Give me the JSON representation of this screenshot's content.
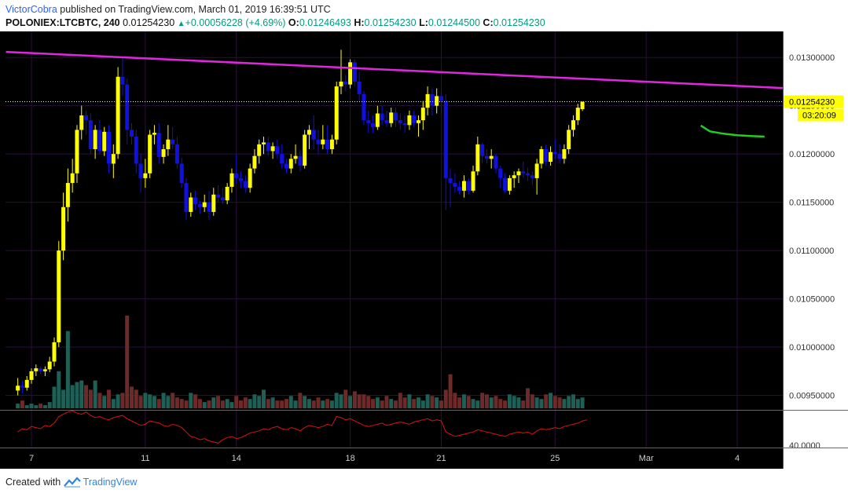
{
  "header": {
    "author": "VictorCobra",
    "published_text": "published on TradingView.com, March 01, 2019 16:39:51 UTC",
    "symbol": "POLONIEX:LTCBTC, 240",
    "last": "0.01254230",
    "change": "+0.00056228 (+4.69%)",
    "o_label": "O:",
    "o_value": "0.01246493",
    "h_label": "H:",
    "h_value": "0.01254230",
    "l_label": "L:",
    "l_value": "0.01244500",
    "c_label": "C:",
    "c_value": "0.01254230"
  },
  "footer": {
    "created_with": "Created with",
    "brand": "TradingView"
  },
  "colors": {
    "background": "#000000",
    "up_candle": "#ffff00",
    "down_candle": "#1010e0",
    "trendline": "#e026e0",
    "forecast": "#22cc22",
    "rsi": "#dd1111",
    "vol_up": "#1e5f56",
    "vol_down": "#6e2a28",
    "grid": "#2a0f3a",
    "price_line": "#ffff80"
  },
  "chart_data": {
    "type": "candlestick",
    "symbol": "POLONIEX:LTCBTC",
    "interval": "240",
    "price_axis_labels": [
      "0.01300000",
      "0.01250000",
      "0.01200000",
      "0.01150000",
      "0.01100000",
      "0.01050000",
      "0.01000000",
      "0.00950000"
    ],
    "price_axis_values": [
      0.013,
      0.0125,
      0.012,
      0.0115,
      0.011,
      0.0105,
      0.01,
      0.0095
    ],
    "ylim": [
      0.00935,
      0.01327
    ],
    "x_tick_labels": [
      "7",
      "11",
      "14",
      "18",
      "21",
      "25",
      "Mar",
      "4"
    ],
    "x_tick_index": [
      3,
      28,
      48,
      73,
      93,
      118,
      138,
      158
    ],
    "x_range_index": [
      -2.7,
      168
    ],
    "current_price_label": "0.01254230",
    "countdown_label": "03:20:09",
    "rsi_label": "40.0000",
    "rsi_range": [
      38,
      72
    ],
    "candles": [
      [
        0.00955,
        0.00968,
        0.0095,
        0.0096
      ],
      [
        0.0096,
        0.00965,
        0.00952,
        0.00958
      ],
      [
        0.00958,
        0.0097,
        0.00955,
        0.00966
      ],
      [
        0.00966,
        0.00978,
        0.00962,
        0.00975
      ],
      [
        0.00975,
        0.00982,
        0.0097,
        0.00978
      ],
      [
        0.00978,
        0.0098,
        0.00972,
        0.00975
      ],
      [
        0.00975,
        0.0098,
        0.0097,
        0.00977
      ],
      [
        0.00977,
        0.0099,
        0.00974,
        0.00985
      ],
      [
        0.00985,
        0.0101,
        0.0098,
        0.01005
      ],
      [
        0.01005,
        0.0111,
        0.01,
        0.011
      ],
      [
        0.011,
        0.0116,
        0.0109,
        0.01145
      ],
      [
        0.01145,
        0.01185,
        0.0113,
        0.0117
      ],
      [
        0.0117,
        0.01195,
        0.0116,
        0.0118
      ],
      [
        0.0118,
        0.0123,
        0.0117,
        0.01225
      ],
      [
        0.01225,
        0.0125,
        0.01215,
        0.0124
      ],
      [
        0.0124,
        0.01245,
        0.0122,
        0.01235
      ],
      [
        0.01235,
        0.01242,
        0.012,
        0.01205
      ],
      [
        0.01205,
        0.0123,
        0.01195,
        0.01225
      ],
      [
        0.01225,
        0.01235,
        0.012,
        0.01203
      ],
      [
        0.01203,
        0.01228,
        0.01198,
        0.01223
      ],
      [
        0.01223,
        0.0123,
        0.0118,
        0.0119
      ],
      [
        0.0119,
        0.0121,
        0.01175,
        0.012
      ],
      [
        0.012,
        0.0129,
        0.01195,
        0.0128
      ],
      [
        0.0128,
        0.013,
        0.0126,
        0.01272
      ],
      [
        0.01272,
        0.01278,
        0.0121,
        0.01225
      ],
      [
        0.01225,
        0.01232,
        0.0121,
        0.01218
      ],
      [
        0.01218,
        0.01225,
        0.0118,
        0.0119
      ],
      [
        0.0119,
        0.012,
        0.0116,
        0.01175
      ],
      [
        0.01175,
        0.01195,
        0.01165,
        0.0118
      ],
      [
        0.0118,
        0.01225,
        0.01175,
        0.0122
      ],
      [
        0.0122,
        0.0123,
        0.0121,
        0.01222
      ],
      [
        0.01222,
        0.01232,
        0.0119,
        0.01197
      ],
      [
        0.01197,
        0.0121,
        0.0119,
        0.01205
      ],
      [
        0.01205,
        0.0123,
        0.01198,
        0.01215
      ],
      [
        0.01215,
        0.01228,
        0.01205,
        0.0121
      ],
      [
        0.0121,
        0.01218,
        0.01185,
        0.0119
      ],
      [
        0.0119,
        0.01196,
        0.01165,
        0.0117
      ],
      [
        0.0117,
        0.01175,
        0.01132,
        0.0114
      ],
      [
        0.0114,
        0.0116,
        0.01135,
        0.01155
      ],
      [
        0.01155,
        0.01162,
        0.01142,
        0.01148
      ],
      [
        0.01148,
        0.01152,
        0.01138,
        0.01145
      ],
      [
        0.01145,
        0.01158,
        0.0114,
        0.0115
      ],
      [
        0.0115,
        0.01162,
        0.01132,
        0.0114
      ],
      [
        0.0114,
        0.01165,
        0.01136,
        0.01158
      ],
      [
        0.01158,
        0.01168,
        0.0115,
        0.01155
      ],
      [
        0.01155,
        0.01165,
        0.01148,
        0.01152
      ],
      [
        0.01152,
        0.0117,
        0.01148,
        0.01166
      ],
      [
        0.01166,
        0.01185,
        0.0116,
        0.0118
      ],
      [
        0.0118,
        0.012,
        0.0117,
        0.01175
      ],
      [
        0.01175,
        0.01182,
        0.01165,
        0.01172
      ],
      [
        0.01172,
        0.01178,
        0.0116,
        0.01165
      ],
      [
        0.01165,
        0.0119,
        0.0116,
        0.01185
      ],
      [
        0.01185,
        0.01205,
        0.0118,
        0.01198
      ],
      [
        0.01198,
        0.01215,
        0.0119,
        0.0121
      ],
      [
        0.0121,
        0.01218,
        0.012,
        0.01212
      ],
      [
        0.01212,
        0.01218,
        0.01198,
        0.01203
      ],
      [
        0.01203,
        0.01212,
        0.01195,
        0.01208
      ],
      [
        0.01208,
        0.01215,
        0.01195,
        0.012
      ],
      [
        0.012,
        0.0121,
        0.01185,
        0.0119
      ],
      [
        0.0119,
        0.01195,
        0.0118,
        0.01185
      ],
      [
        0.01185,
        0.012,
        0.0118,
        0.01195
      ],
      [
        0.01195,
        0.0121,
        0.0119,
        0.01198
      ],
      [
        0.01198,
        0.01204,
        0.01182,
        0.01188
      ],
      [
        0.01188,
        0.01225,
        0.01185,
        0.0122
      ],
      [
        0.0122,
        0.0123,
        0.01205,
        0.01225
      ],
      [
        0.01225,
        0.0124,
        0.01205,
        0.01215
      ],
      [
        0.01215,
        0.01225,
        0.012,
        0.0121
      ],
      [
        0.0121,
        0.0123,
        0.01205,
        0.01215
      ],
      [
        0.01215,
        0.0123,
        0.012,
        0.01205
      ],
      [
        0.01205,
        0.0122,
        0.012,
        0.01215
      ],
      [
        0.01215,
        0.01275,
        0.0121,
        0.0127
      ],
      [
        0.0127,
        0.01308,
        0.01262,
        0.01275
      ],
      [
        0.01275,
        0.01282,
        0.01265,
        0.01272
      ],
      [
        0.01272,
        0.01298,
        0.01268,
        0.01295
      ],
      [
        0.01295,
        0.01298,
        0.0127,
        0.01275
      ],
      [
        0.01275,
        0.01285,
        0.01255,
        0.01262
      ],
      [
        0.01262,
        0.01265,
        0.0123,
        0.01235
      ],
      [
        0.01235,
        0.01245,
        0.01222,
        0.01232
      ],
      [
        0.01232,
        0.0124,
        0.01222,
        0.01228
      ],
      [
        0.01228,
        0.0125,
        0.01225,
        0.01242
      ],
      [
        0.01242,
        0.0125,
        0.0123,
        0.01235
      ],
      [
        0.01235,
        0.01245,
        0.01228,
        0.01232
      ],
      [
        0.01232,
        0.01248,
        0.01228,
        0.01243
      ],
      [
        0.01243,
        0.01248,
        0.01228,
        0.01235
      ],
      [
        0.01235,
        0.01242,
        0.01225,
        0.01232
      ],
      [
        0.01232,
        0.0124,
        0.01222,
        0.0123
      ],
      [
        0.0123,
        0.01245,
        0.01225,
        0.0124
      ],
      [
        0.0124,
        0.01245,
        0.01228,
        0.01232
      ],
      [
        0.01232,
        0.0124,
        0.01218,
        0.01235
      ],
      [
        0.01235,
        0.01255,
        0.01225,
        0.01248
      ],
      [
        0.01248,
        0.0127,
        0.0124,
        0.01262
      ],
      [
        0.01262,
        0.01268,
        0.0124,
        0.0125
      ],
      [
        0.0125,
        0.01268,
        0.01242,
        0.0126
      ],
      [
        0.0126,
        0.01265,
        0.0124,
        0.01255
      ],
      [
        0.01255,
        0.01262,
        0.01142,
        0.01175
      ],
      [
        0.01175,
        0.01185,
        0.01145,
        0.0117
      ],
      [
        0.0117,
        0.0118,
        0.0116,
        0.01166
      ],
      [
        0.01166,
        0.01172,
        0.01158,
        0.01162
      ],
      [
        0.01162,
        0.01178,
        0.01155,
        0.01172
      ],
      [
        0.01172,
        0.01175,
        0.01158,
        0.01162
      ],
      [
        0.01162,
        0.01188,
        0.0116,
        0.01182
      ],
      [
        0.01182,
        0.01218,
        0.01178,
        0.0121
      ],
      [
        0.0121,
        0.01212,
        0.0119,
        0.01198
      ],
      [
        0.01198,
        0.01205,
        0.0119,
        0.01195
      ],
      [
        0.01195,
        0.01205,
        0.01185,
        0.01198
      ],
      [
        0.01198,
        0.012,
        0.0118,
        0.01185
      ],
      [
        0.01185,
        0.01188,
        0.01165,
        0.01175
      ],
      [
        0.01175,
        0.0118,
        0.0116,
        0.01162
      ],
      [
        0.01162,
        0.01178,
        0.01158,
        0.01175
      ],
      [
        0.01175,
        0.01182,
        0.01165,
        0.01178
      ],
      [
        0.01178,
        0.01185,
        0.0117,
        0.01182
      ],
      [
        0.01182,
        0.01192,
        0.01175,
        0.0118
      ],
      [
        0.0118,
        0.01186,
        0.01172,
        0.01178
      ],
      [
        0.01178,
        0.01182,
        0.01168,
        0.01175
      ],
      [
        0.01175,
        0.01195,
        0.01158,
        0.0119
      ],
      [
        0.0119,
        0.01208,
        0.01185,
        0.01205
      ],
      [
        0.01205,
        0.0121,
        0.01188,
        0.01192
      ],
      [
        0.01192,
        0.01208,
        0.01188,
        0.01202
      ],
      [
        0.01202,
        0.01215,
        0.01195,
        0.012
      ],
      [
        0.012,
        0.0121,
        0.0119,
        0.01195
      ],
      [
        0.01195,
        0.0121,
        0.0119,
        0.01205
      ],
      [
        0.01205,
        0.0123,
        0.012,
        0.01225
      ],
      [
        0.01225,
        0.0124,
        0.01218,
        0.01235
      ],
      [
        0.01235,
        0.01252,
        0.0123,
        0.01248
      ],
      [
        0.01246493,
        0.0125423,
        0.012445,
        0.0125423
      ]
    ],
    "candle_start_index": 0,
    "volume": [
      3,
      5,
      2,
      3,
      2,
      3,
      2,
      4,
      14,
      24,
      12,
      50,
      15,
      17,
      18,
      15,
      12,
      18,
      10,
      8,
      12,
      6,
      9,
      10,
      60,
      14,
      12,
      8,
      10,
      9,
      8,
      6,
      10,
      8,
      10,
      7,
      6,
      5,
      10,
      9,
      6,
      4,
      5,
      7,
      8,
      5,
      6,
      4,
      8,
      5,
      7,
      6,
      9,
      8,
      12,
      6,
      7,
      5,
      5,
      6,
      8,
      5,
      10,
      8,
      6,
      5,
      7,
      5,
      6,
      5,
      10,
      9,
      12,
      8,
      11,
      9,
      9,
      8,
      6,
      7,
      5,
      8,
      6,
      5,
      10,
      7,
      9,
      6,
      7,
      5,
      9,
      8,
      7,
      5,
      12,
      22,
      10,
      7,
      9,
      8,
      6,
      5,
      10,
      9,
      7,
      8,
      6,
      5,
      9,
      8,
      7,
      5,
      13,
      9,
      7,
      6,
      9,
      10,
      8,
      7,
      6,
      8,
      9,
      6,
      7,
      5
    ],
    "volume_max": 60,
    "rsi": [
      52,
      55,
      54,
      57,
      56,
      55,
      58,
      57,
      60,
      66,
      68,
      70,
      71,
      69,
      68,
      70,
      67,
      65,
      66,
      64,
      63,
      65,
      66,
      67,
      64,
      62,
      60,
      58,
      59,
      62,
      61,
      60,
      58,
      57,
      59,
      58,
      56,
      52,
      48,
      47,
      45,
      46,
      44,
      43,
      42,
      45,
      47,
      48,
      46,
      47,
      49,
      51,
      52,
      53,
      55,
      54,
      56,
      57,
      55,
      54,
      56,
      55,
      53,
      56,
      58,
      57,
      56,
      57,
      59,
      58,
      66,
      65,
      63,
      64,
      62,
      60,
      58,
      57,
      58,
      59,
      60,
      58,
      59,
      60,
      61,
      60,
      59,
      61,
      62,
      63,
      64,
      62,
      63,
      62,
      52,
      50,
      48,
      49,
      50,
      51,
      52,
      54,
      53,
      52,
      51,
      50,
      49,
      48,
      50,
      51,
      52,
      51,
      52,
      50,
      53,
      55,
      54,
      55,
      56,
      55,
      57,
      58,
      59,
      60,
      62,
      63
    ],
    "trendline": {
      "x": [
        -2.6,
        168
      ],
      "y": [
        0.013058,
        0.012683
      ]
    },
    "forecast_curve": {
      "x": [
        150,
        152,
        155,
        158,
        161,
        164
      ],
      "y": [
        0.012295,
        0.012235,
        0.01221,
        0.012195,
        0.012187,
        0.01218
      ]
    },
    "current_price": 0.0125423
  }
}
